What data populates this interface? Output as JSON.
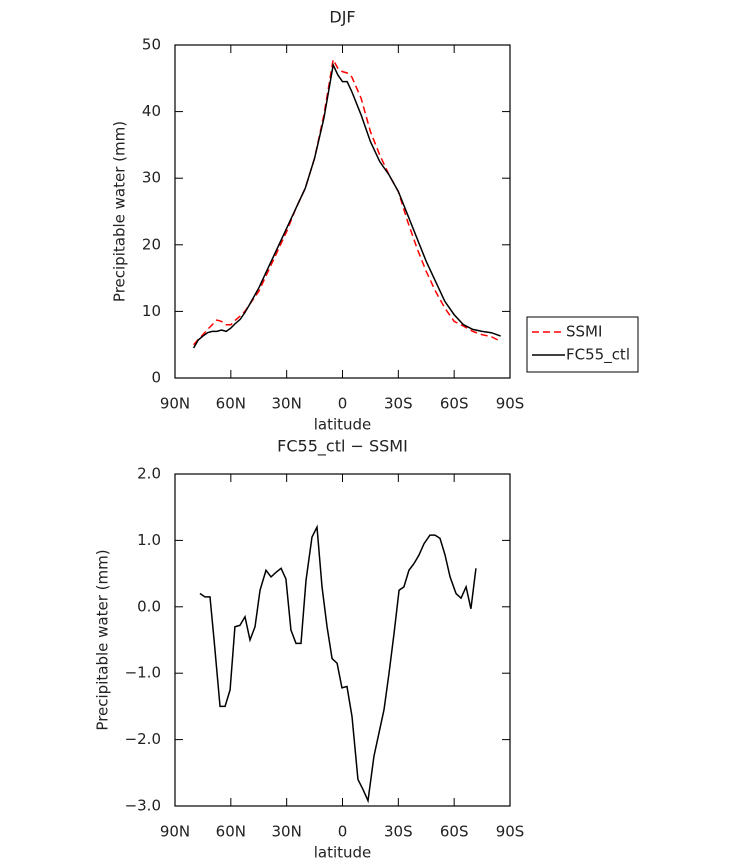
{
  "chart_data": [
    {
      "type": "line",
      "title": "DJF",
      "xlabel": "latitude",
      "ylabel": "Precipitable water (mm)",
      "x": [
        80,
        77.5,
        75,
        72.5,
        70,
        67.5,
        65,
        62.5,
        60,
        57.5,
        55,
        52.5,
        50,
        45,
        40,
        35,
        30,
        25,
        20,
        15,
        10,
        5,
        2.5,
        0,
        -2.5,
        -5,
        -10,
        -15,
        -20,
        -25,
        -30,
        -35,
        -40,
        -45,
        -50,
        -55,
        -60,
        -65,
        -70,
        -75,
        -80,
        -85
      ],
      "xlim": [
        90,
        -90
      ],
      "xticks": [
        {
          "value": 90,
          "label": "90N"
        },
        {
          "value": 60,
          "label": "60N"
        },
        {
          "value": 30,
          "label": "30N"
        },
        0,
        {
          "value": -30,
          "label": "30S"
        },
        {
          "value": -60,
          "label": "60S"
        },
        {
          "value": -90,
          "label": "90S"
        }
      ],
      "ylim": [
        0,
        50
      ],
      "yticks": [
        0,
        10,
        20,
        30,
        40,
        50
      ],
      "legend": "right",
      "series": [
        {
          "name": "SSMI",
          "color": "#ff0000",
          "linestyle": "dashed",
          "values": [
            5.0,
            5.8,
            6.5,
            7.3,
            8.0,
            8.7,
            8.5,
            8.0,
            8.0,
            8.7,
            9.3,
            10.0,
            11.0,
            13.0,
            16.0,
            19.0,
            22.0,
            25.5,
            28.5,
            33.0,
            39.5,
            47.8,
            46.5,
            46.0,
            45.8,
            45.2,
            42.0,
            37.0,
            33.5,
            30.5,
            28.0,
            23.5,
            19.5,
            16.0,
            13.0,
            10.5,
            8.5,
            7.8,
            7.0,
            6.5,
            6.2,
            5.5
          ]
        },
        {
          "name": "FC55_ctl",
          "color": "#000000",
          "linestyle": "solid",
          "values": [
            4.5,
            5.7,
            6.3,
            6.8,
            7.0,
            7.0,
            7.2,
            7.0,
            7.5,
            8.2,
            8.8,
            9.8,
            11.0,
            13.5,
            16.5,
            19.5,
            22.5,
            25.5,
            28.5,
            33.0,
            39.0,
            47.0,
            45.5,
            44.5,
            44.5,
            43.0,
            39.5,
            35.5,
            32.5,
            30.5,
            28.0,
            24.5,
            21.0,
            17.5,
            14.5,
            11.5,
            9.5,
            8.0,
            7.3,
            7.0,
            6.8,
            6.3
          ]
        }
      ]
    },
    {
      "type": "line",
      "title": "FC55_ctl − SSMI",
      "xlabel": "latitude",
      "ylabel": "Precipitable water (mm)",
      "x": [
        76.6,
        73.9,
        71.2,
        69.0,
        65.8,
        63.1,
        60.4,
        57.8,
        55.1,
        52.4,
        49.7,
        47.0,
        44.3,
        41.1,
        38.4,
        35.7,
        33.0,
        30.4,
        27.7,
        25.0,
        22.3,
        19.6,
        16.4,
        13.7,
        11.0,
        8.3,
        5.6,
        2.9,
        0.3,
        -2.4,
        -5.1,
        -8.3,
        -11.0,
        -13.7,
        -16.9,
        -19.6,
        -22.3,
        -25.0,
        -27.7,
        -30.4,
        -33.0,
        -35.7,
        -38.4,
        -41.1,
        -43.8,
        -47.0,
        -49.7,
        -52.4,
        -55.1,
        -57.8,
        -61.0,
        -63.7,
        -66.4,
        -69.0,
        -71.7
      ],
      "xlim": [
        90,
        -90
      ],
      "xticks": [
        {
          "value": 90,
          "label": "90N"
        },
        {
          "value": 60,
          "label": "60N"
        },
        {
          "value": 30,
          "label": "30N"
        },
        0,
        {
          "value": -30,
          "label": "30S"
        },
        {
          "value": -60,
          "label": "60S"
        },
        {
          "value": -90,
          "label": "90S"
        }
      ],
      "ylim": [
        -3,
        2
      ],
      "yticks": [
        {
          "value": -3,
          "label": "−3.0"
        },
        {
          "value": -2,
          "label": "−2.0"
        },
        {
          "value": -1,
          "label": "−1.0"
        },
        {
          "value": 0,
          "label": "0.0"
        },
        {
          "value": 1,
          "label": "1.0"
        },
        {
          "value": 2,
          "label": "2.0"
        }
      ],
      "series": [
        {
          "color": "#000000",
          "linestyle": "solid",
          "values": [
            0.2,
            0.15,
            0.15,
            -0.5,
            -1.5,
            -1.5,
            -1.25,
            -0.3,
            -0.28,
            -0.15,
            -0.5,
            -0.3,
            0.25,
            0.55,
            0.45,
            0.52,
            0.58,
            0.42,
            -0.35,
            -0.55,
            -0.55,
            0.4,
            1.05,
            1.2,
            0.3,
            -0.3,
            -0.78,
            -0.85,
            -1.22,
            -1.2,
            -1.65,
            -2.6,
            -2.75,
            -2.92,
            -2.25,
            -1.9,
            -1.55,
            -1.0,
            -0.4,
            0.25,
            0.3,
            0.55,
            0.65,
            0.78,
            0.95,
            1.08,
            1.08,
            1.03,
            0.78,
            0.45,
            0.2,
            0.13,
            0.3,
            -0.03,
            0.58
          ]
        }
      ]
    }
  ]
}
